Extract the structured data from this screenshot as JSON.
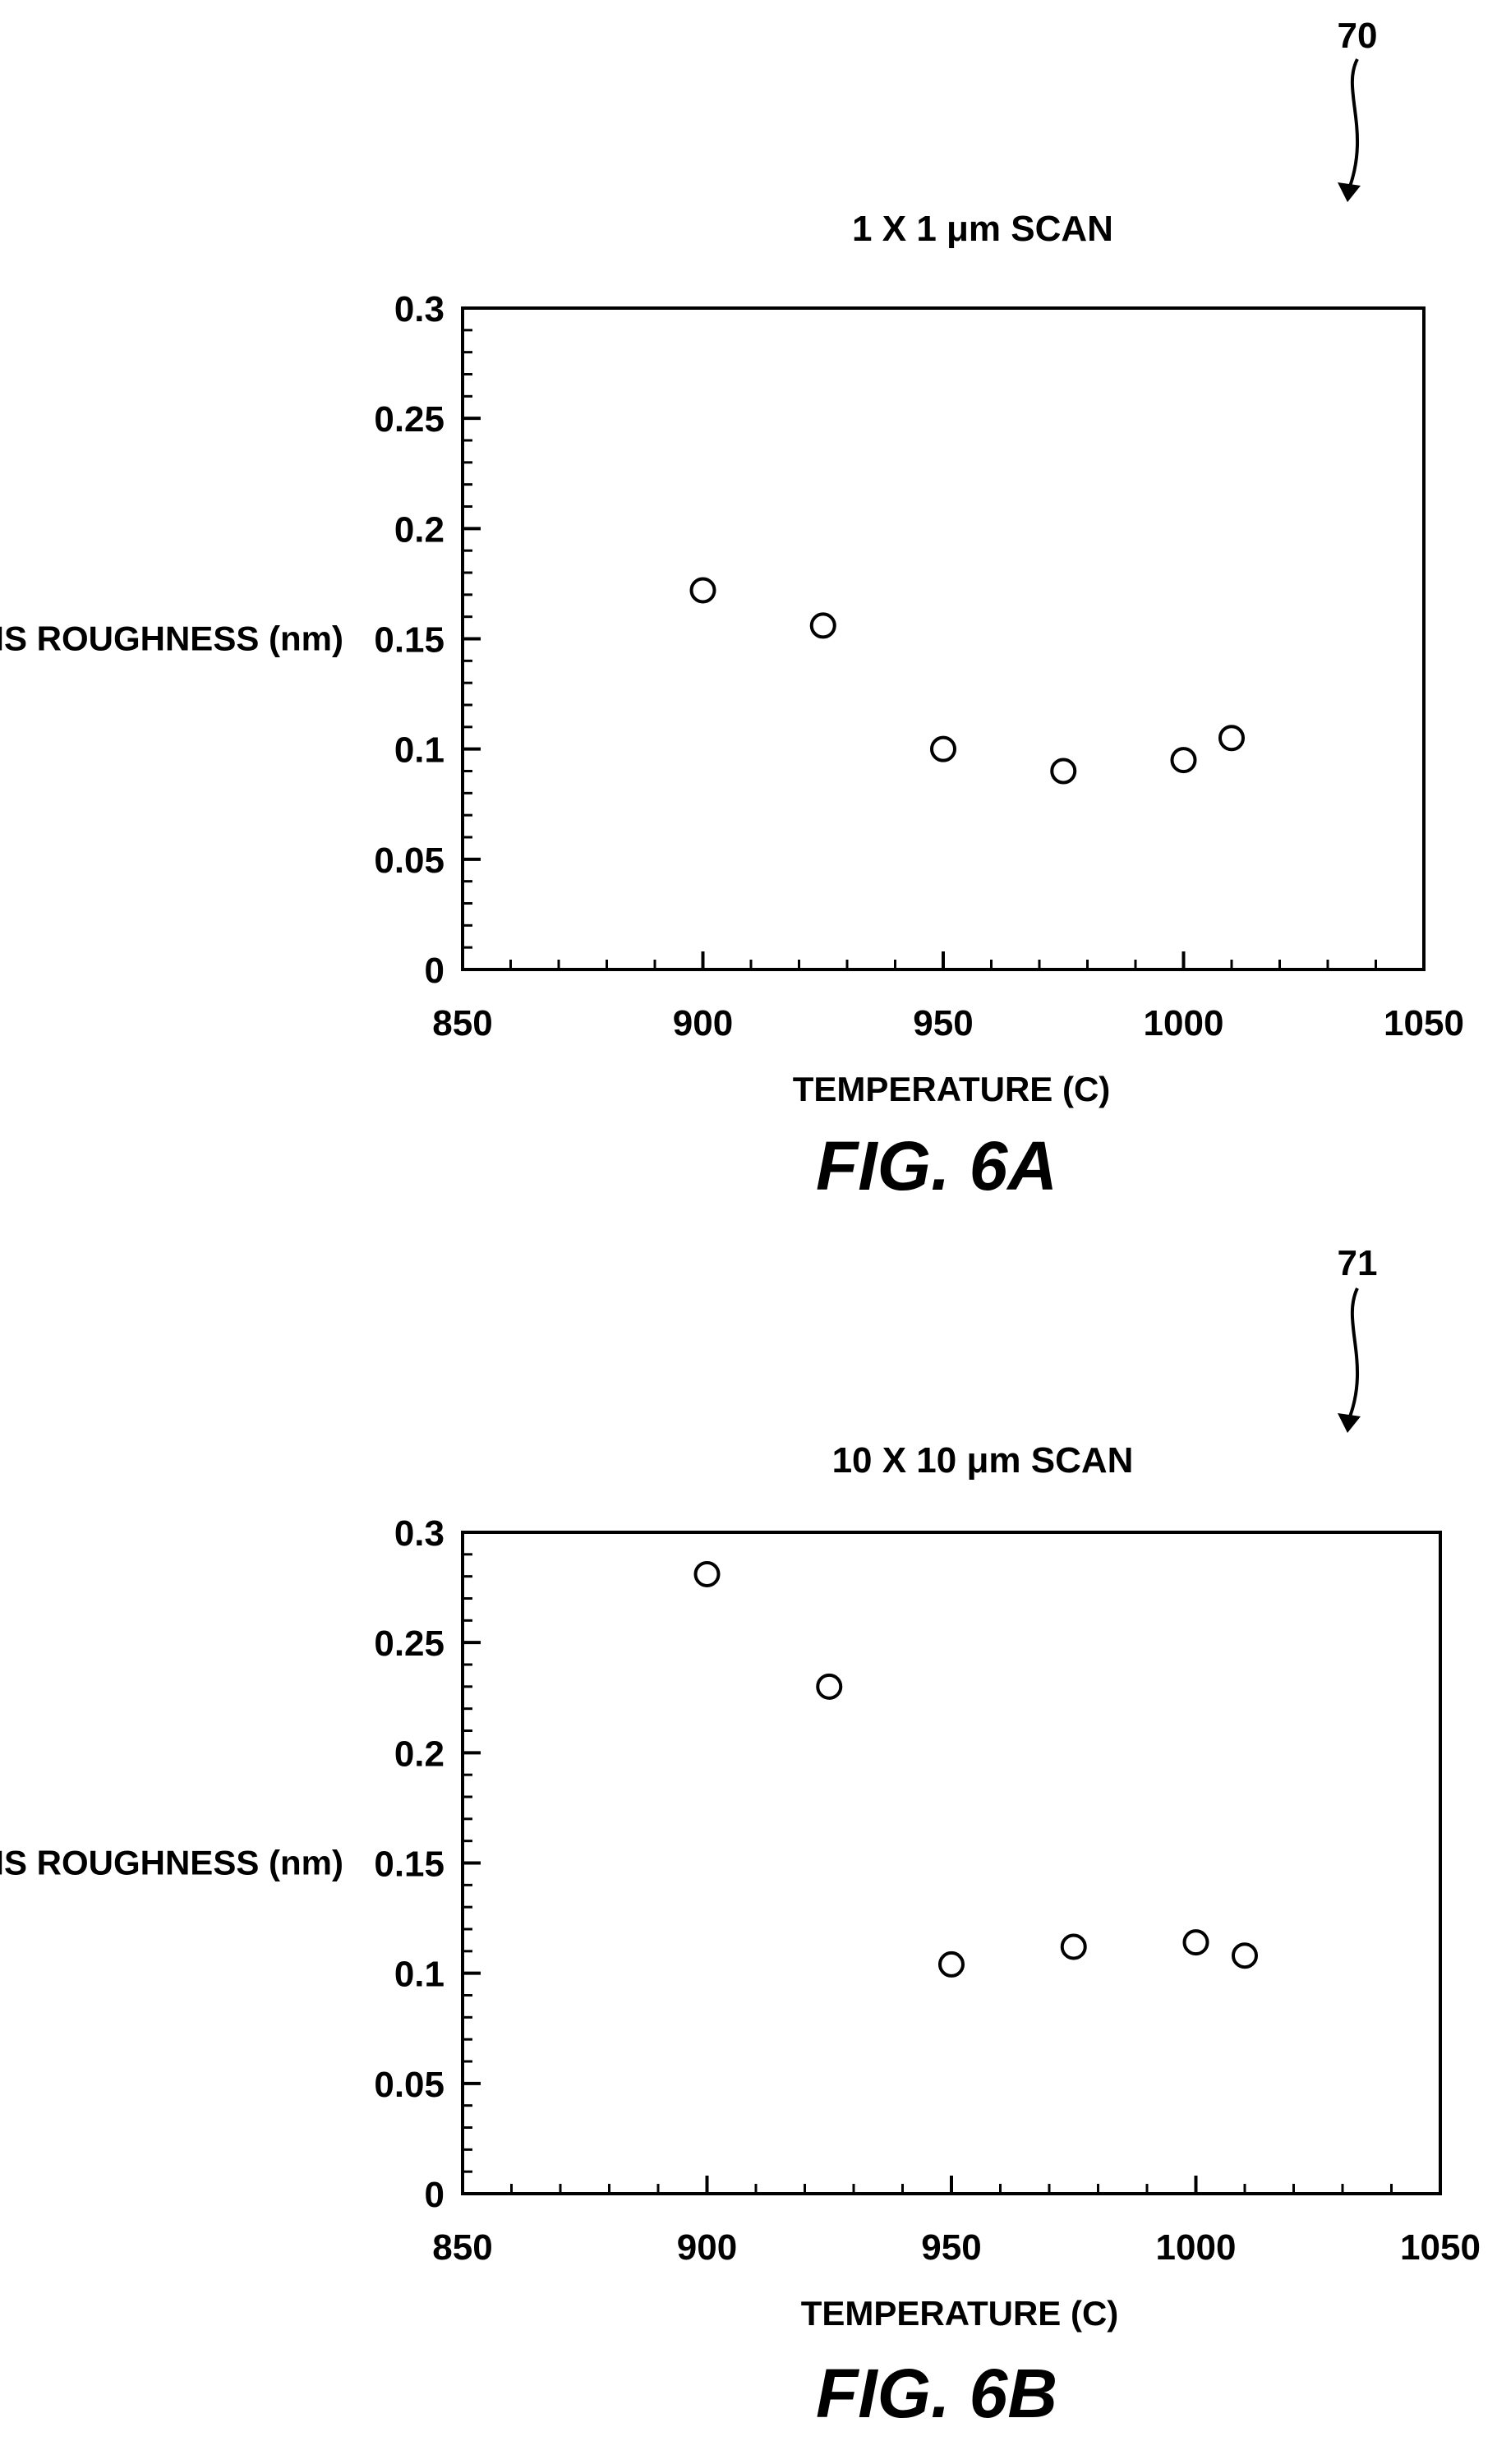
{
  "chart_data": [
    {
      "type": "scatter",
      "reference": "70",
      "title": "1 X 1 μm SCAN",
      "xlabel": "TEMPERATURE (C)",
      "ylabel": "RMS ROUGHNESS (nm)",
      "xlim": [
        850,
        1050
      ],
      "ylim": [
        0,
        0.3
      ],
      "xticks": [
        "850",
        "900",
        "950",
        "1000",
        "1050"
      ],
      "yticks": [
        "0",
        "0.05",
        "0.1",
        "0.15",
        "0.2",
        "0.25",
        "0.3"
      ],
      "grid": false,
      "marker": "open-circle",
      "x": [
        900,
        925,
        950,
        975,
        1000,
        1010
      ],
      "y": [
        0.172,
        0.156,
        0.1,
        0.09,
        0.095,
        0.105
      ],
      "caption": "FIG. 6A"
    },
    {
      "type": "scatter",
      "reference": "71",
      "title": "10 X 10 μm SCAN",
      "xlabel": "TEMPERATURE (C)",
      "ylabel": "RMS ROUGHNESS (nm)",
      "xlim": [
        850,
        1050
      ],
      "ylim": [
        0,
        0.3
      ],
      "xticks": [
        "850",
        "900",
        "950",
        "1000",
        "1050"
      ],
      "yticks": [
        "0",
        "0.05",
        "0.1",
        "0.15",
        "0.2",
        "0.25",
        "0.3"
      ],
      "grid": false,
      "marker": "open-circle",
      "x": [
        900,
        925,
        950,
        975,
        1000,
        1010
      ],
      "y": [
        0.281,
        0.23,
        0.104,
        0.112,
        0.114,
        0.108
      ],
      "caption": "FIG. 6B"
    }
  ]
}
